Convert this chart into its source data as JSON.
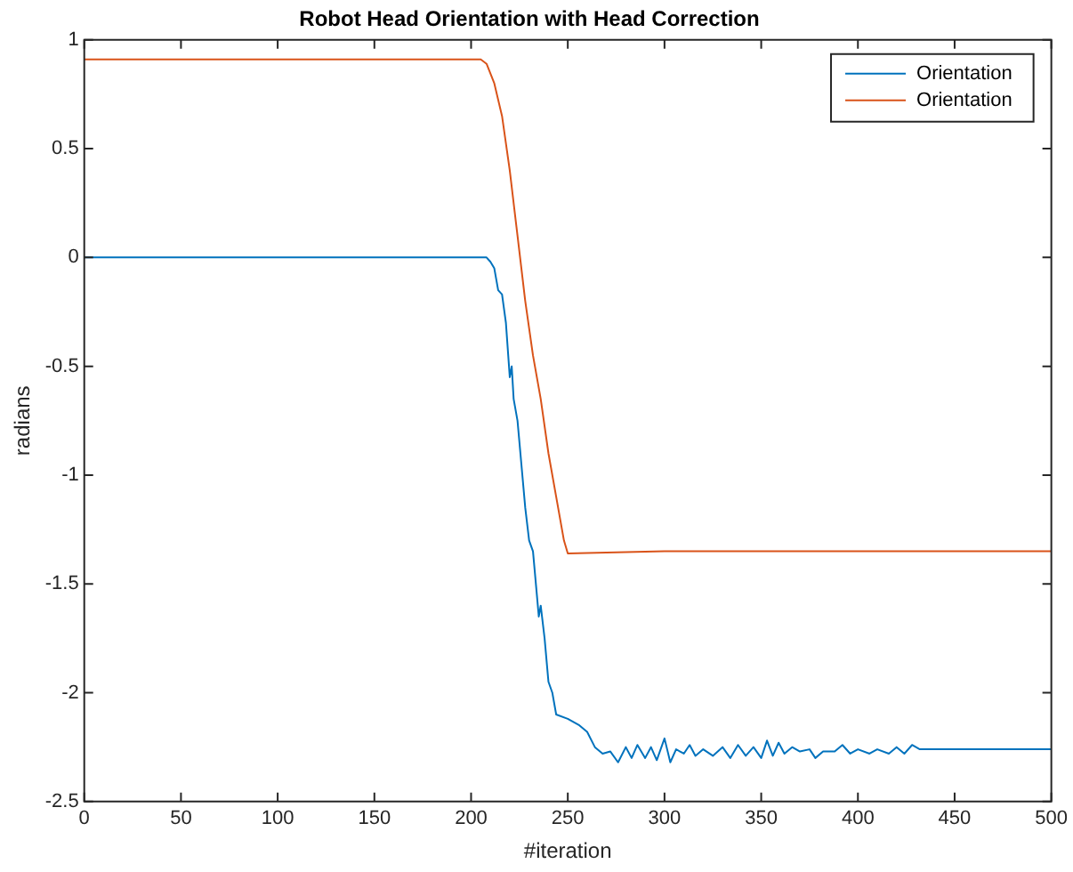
{
  "chart_data": {
    "type": "line",
    "title": "Robot Head Orientation with Head Correction",
    "xlabel": "#iteration",
    "ylabel": "radians",
    "xlim": [
      0,
      500
    ],
    "xticks": [
      0,
      50,
      100,
      150,
      200,
      250,
      300,
      350,
      400,
      450,
      500
    ],
    "ylim": [
      -2.5,
      1
    ],
    "yticks": [
      1,
      0.5,
      0,
      -0.5,
      -1,
      -1.5,
      -2,
      -2.5
    ],
    "grid": false,
    "legend": "top right",
    "marker": "none",
    "line_style": "solid",
    "series": [
      {
        "name": "Orientation",
        "color": "#0072bd",
        "x": [
          0,
          50,
          100,
          150,
          200,
          205,
          208,
          210,
          212,
          214,
          216,
          218,
          220,
          221,
          222,
          224,
          226,
          228,
          230,
          232,
          234,
          235,
          236,
          238,
          240,
          242,
          244,
          250,
          256,
          260,
          264,
          268,
          272,
          276,
          280,
          283,
          286,
          290,
          293,
          296,
          300,
          303,
          306,
          310,
          313,
          316,
          320,
          325,
          330,
          334,
          338,
          342,
          346,
          350,
          353,
          356,
          359,
          362,
          366,
          370,
          375,
          378,
          382,
          388,
          392,
          396,
          400,
          406,
          410,
          416,
          420,
          424,
          428,
          432,
          500
        ],
        "values": [
          0,
          0,
          0,
          0,
          0,
          0,
          0,
          -0.02,
          -0.05,
          -0.15,
          -0.17,
          -0.3,
          -0.55,
          -0.5,
          -0.65,
          -0.75,
          -0.95,
          -1.15,
          -1.3,
          -1.35,
          -1.55,
          -1.65,
          -1.6,
          -1.75,
          -1.95,
          -2,
          -2.1,
          -2.12,
          -2.15,
          -2.18,
          -2.25,
          -2.28,
          -2.27,
          -2.32,
          -2.25,
          -2.3,
          -2.24,
          -2.3,
          -2.25,
          -2.31,
          -2.21,
          -2.32,
          -2.26,
          -2.28,
          -2.24,
          -2.29,
          -2.26,
          -2.29,
          -2.25,
          -2.3,
          -2.24,
          -2.29,
          -2.25,
          -2.3,
          -2.22,
          -2.29,
          -2.23,
          -2.28,
          -2.25,
          -2.27,
          -2.26,
          -2.3,
          -2.27,
          -2.27,
          -2.24,
          -2.28,
          -2.26,
          -2.28,
          -2.26,
          -2.28,
          -2.25,
          -2.28,
          -2.24,
          -2.26,
          -2.26
        ]
      },
      {
        "name": "Orientation",
        "color": "#d95319",
        "x": [
          0,
          100,
          200,
          205,
          208,
          212,
          216,
          220,
          224,
          228,
          232,
          236,
          240,
          244,
          248,
          250,
          300,
          400,
          500
        ],
        "values": [
          0.91,
          0.91,
          0.91,
          0.91,
          0.89,
          0.8,
          0.65,
          0.4,
          0.1,
          -0.2,
          -0.45,
          -0.65,
          -0.9,
          -1.1,
          -1.3,
          -1.36,
          -1.35,
          -1.35,
          -1.35
        ]
      }
    ]
  }
}
